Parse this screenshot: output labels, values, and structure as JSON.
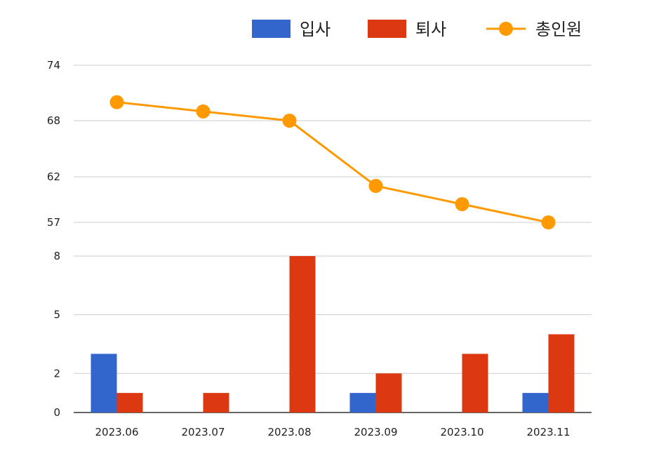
{
  "chart_data": {
    "type": "bar+line",
    "categories": [
      "2023.06",
      "2023.07",
      "2023.08",
      "2023.09",
      "2023.10",
      "2023.11"
    ],
    "legend": {
      "position": "top-right"
    },
    "colors": {
      "hire": "#3366cc",
      "leave": "#dc3912",
      "total": "#ff9900",
      "grid": "#cccccc",
      "baseline": "#333333"
    },
    "upper_panel": {
      "type": "line",
      "y_ticks": [
        74,
        68,
        62,
        57
      ],
      "ylim": [
        57,
        74
      ],
      "series": [
        {
          "name": "총인원",
          "key": "total",
          "values": [
            70,
            69,
            68,
            61,
            59,
            57
          ]
        }
      ]
    },
    "lower_panel": {
      "type": "bar",
      "y_ticks": [
        8,
        5,
        2,
        0
      ],
      "ylim": [
        0,
        8
      ],
      "series": [
        {
          "name": "입사",
          "key": "hire",
          "values": [
            3,
            0,
            0,
            1,
            0,
            1
          ]
        },
        {
          "name": "퇴사",
          "key": "leave",
          "values": [
            1,
            1,
            8,
            2,
            3,
            4
          ]
        }
      ]
    },
    "grid": true
  }
}
